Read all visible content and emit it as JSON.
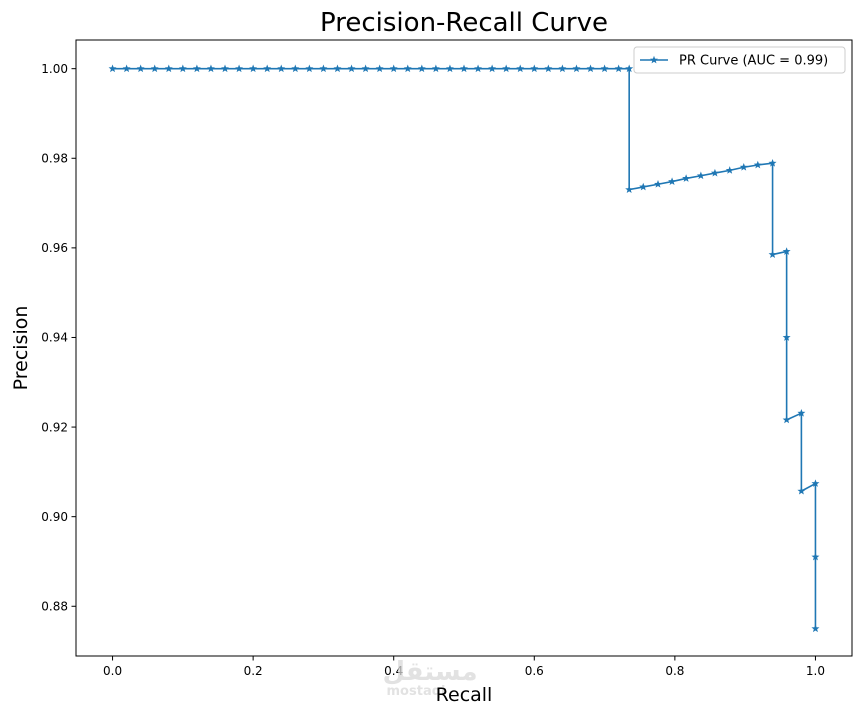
{
  "chart_data": {
    "type": "line",
    "title": "Precision-Recall Curve",
    "xlabel": "Recall",
    "ylabel": "Precision",
    "xlim": [
      -0.052,
      1.052
    ],
    "ylim": [
      0.8689,
      1.0064
    ],
    "xticks": [
      0.0,
      0.2,
      0.4,
      0.6,
      0.8,
      1.0
    ],
    "xtick_labels": [
      "0.0",
      "0.2",
      "0.4",
      "0.6",
      "0.8",
      "1.0"
    ],
    "yticks": [
      0.88,
      0.9,
      0.92,
      0.94,
      0.96,
      0.98,
      1.0
    ],
    "ytick_labels": [
      "0.88",
      "0.90",
      "0.92",
      "0.94",
      "0.96",
      "0.98",
      "1.00"
    ],
    "grid": false,
    "legend_position": "top-right",
    "color": "#1f77b4",
    "marker": "star",
    "series": [
      {
        "name": "PR Curve (AUC = 0.99)",
        "x": [
          0.0,
          0.02,
          0.04,
          0.06,
          0.08,
          0.1,
          0.12,
          0.14,
          0.16,
          0.18,
          0.2,
          0.22,
          0.24,
          0.26,
          0.28,
          0.3,
          0.32,
          0.34,
          0.36,
          0.38,
          0.4,
          0.42,
          0.44,
          0.46,
          0.48,
          0.5,
          0.52,
          0.54,
          0.56,
          0.58,
          0.6,
          0.62,
          0.64,
          0.66,
          0.68,
          0.7,
          0.72,
          0.735,
          0.735,
          0.755,
          0.776,
          0.796,
          0.816,
          0.837,
          0.857,
          0.878,
          0.898,
          0.918,
          0.939,
          0.939,
          0.959,
          0.959,
          0.959,
          0.98,
          0.98,
          1.0,
          1.0,
          1.0
        ],
        "y": [
          1.0,
          1.0,
          1.0,
          1.0,
          1.0,
          1.0,
          1.0,
          1.0,
          1.0,
          1.0,
          1.0,
          1.0,
          1.0,
          1.0,
          1.0,
          1.0,
          1.0,
          1.0,
          1.0,
          1.0,
          1.0,
          1.0,
          1.0,
          1.0,
          1.0,
          1.0,
          1.0,
          1.0,
          1.0,
          1.0,
          1.0,
          1.0,
          1.0,
          1.0,
          1.0,
          1.0,
          1.0,
          1.0,
          0.973,
          0.9736,
          0.9742,
          0.9748,
          0.9755,
          0.9761,
          0.9767,
          0.9773,
          0.978,
          0.9785,
          0.9789,
          0.9585,
          0.9592,
          0.94,
          0.9216,
          0.9231,
          0.9057,
          0.9074,
          0.891,
          0.875
        ]
      }
    ]
  },
  "watermark": {
    "text_arabic": "مستقل",
    "text_latin": "mostaqi"
  }
}
